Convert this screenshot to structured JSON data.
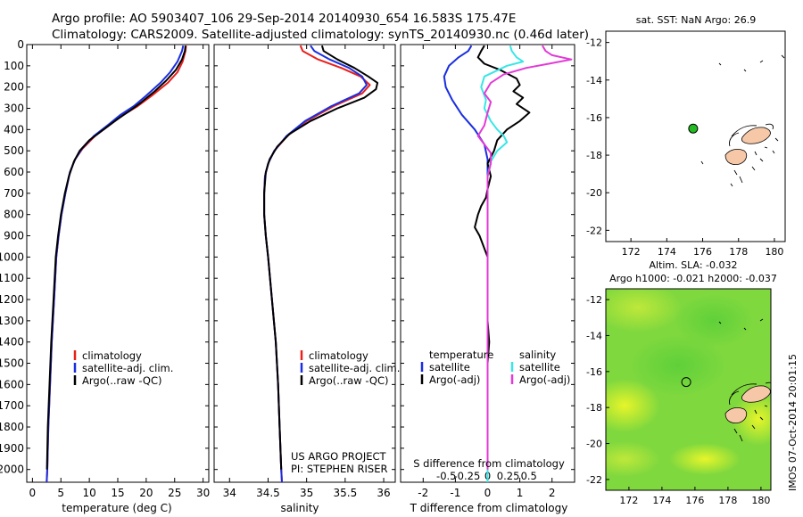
{
  "header": {
    "line1": "Argo profile: AO 5903407_106 29-Sep-2014 20140930_654 16.583S 175.47E",
    "line2": "Climatology: CARS2009. Satellite-adjusted climatology: synTS_20140930.nc (0.46d later)"
  },
  "colors": {
    "climatology": "#e8201c",
    "satellite": "#1a2ee0",
    "argo": "#000000",
    "satellite_s": "#38e6e6",
    "argo_adj": "#e23ad6",
    "land": "#f6c8a8",
    "argo_marker": "#22bb22"
  },
  "chart_data": [
    {
      "type": "line",
      "panel": "temperature",
      "xlabel": "temperature (deg C)",
      "xlim": [
        -1,
        31
      ],
      "ylim": [
        2060,
        0
      ],
      "x_ticks": [
        0,
        5,
        10,
        15,
        20,
        25,
        30
      ],
      "y_ticks": [
        0,
        100,
        200,
        300,
        400,
        500,
        600,
        700,
        800,
        900,
        1000,
        1100,
        1200,
        1300,
        1400,
        1500,
        1600,
        1700,
        1800,
        1900,
        2000
      ],
      "legend": [
        "climatology",
        "satellite-adj. clim.",
        "Argo(..raw -QC)"
      ],
      "series": [
        {
          "name": "climatology",
          "color": "#e8201c",
          "points": [
            [
              27.0,
              5
            ],
            [
              26.9,
              30
            ],
            [
              26.4,
              80
            ],
            [
              25.5,
              130
            ],
            [
              23.8,
              180
            ],
            [
              21.0,
              240
            ],
            [
              18.5,
              290
            ],
            [
              16.0,
              330
            ],
            [
              13.5,
              380
            ],
            [
              11.0,
              430
            ],
            [
              8.8,
              490
            ],
            [
              7.5,
              540
            ],
            [
              6.6,
              600
            ],
            [
              5.8,
              700
            ],
            [
              5.1,
              800
            ],
            [
              4.6,
              900
            ],
            [
              4.2,
              1000
            ],
            [
              3.8,
              1200
            ],
            [
              3.4,
              1400
            ],
            [
              3.1,
              1600
            ],
            [
              2.8,
              1800
            ],
            [
              2.6,
              2000
            ],
            [
              2.5,
              2060
            ]
          ]
        },
        {
          "name": "satellite-adj. clim.",
          "color": "#1a2ee0",
          "points": [
            [
              26.5,
              5
            ],
            [
              26.3,
              30
            ],
            [
              25.5,
              80
            ],
            [
              24.2,
              130
            ],
            [
              22.5,
              180
            ],
            [
              20.0,
              240
            ],
            [
              17.8,
              290
            ],
            [
              15.5,
              330
            ],
            [
              13.2,
              380
            ],
            [
              10.8,
              430
            ],
            [
              8.7,
              490
            ],
            [
              7.5,
              540
            ],
            [
              6.6,
              600
            ],
            [
              5.8,
              700
            ],
            [
              5.1,
              800
            ],
            [
              4.6,
              900
            ],
            [
              4.2,
              1000
            ],
            [
              3.8,
              1200
            ],
            [
              3.4,
              1400
            ],
            [
              3.1,
              1600
            ],
            [
              2.8,
              1800
            ],
            [
              2.6,
              2000
            ],
            [
              2.5,
              2060
            ]
          ]
        },
        {
          "name": "Argo(..raw -QC)",
          "color": "#000000",
          "points": [
            [
              26.9,
              5
            ],
            [
              26.8,
              30
            ],
            [
              26.3,
              70
            ],
            [
              25.2,
              120
            ],
            [
              23.5,
              170
            ],
            [
              21.5,
              220
            ],
            [
              19.2,
              270
            ],
            [
              17.2,
              310
            ],
            [
              15.0,
              350
            ],
            [
              12.5,
              400
            ],
            [
              10.0,
              450
            ],
            [
              8.3,
              500
            ],
            [
              7.3,
              550
            ],
            [
              6.4,
              620
            ],
            [
              5.7,
              700
            ],
            [
              5.0,
              800
            ],
            [
              4.5,
              900
            ],
            [
              4.1,
              1000
            ],
            [
              3.7,
              1200
            ],
            [
              3.3,
              1400
            ],
            [
              3.0,
              1600
            ],
            [
              2.7,
              1800
            ],
            [
              2.55,
              2000
            ]
          ]
        }
      ]
    },
    {
      "type": "line",
      "panel": "salinity",
      "xlabel": "salinity",
      "xlim": [
        33.8,
        36.15
      ],
      "ylim": [
        2060,
        0
      ],
      "x_ticks": [
        34,
        34.5,
        35,
        35.5,
        36
      ],
      "legend": [
        "climatology",
        "satellite-adj. clim.",
        "Argo(..raw -QC)"
      ],
      "annotation": [
        "US ARGO PROJECT",
        "PI: STEPHEN RISER"
      ],
      "series": [
        {
          "name": "climatology",
          "color": "#e8201c",
          "points": [
            [
              34.92,
              5
            ],
            [
              34.95,
              30
            ],
            [
              35.15,
              70
            ],
            [
              35.45,
              110
            ],
            [
              35.7,
              150
            ],
            [
              35.82,
              190
            ],
            [
              35.72,
              230
            ],
            [
              35.35,
              290
            ],
            [
              35.0,
              360
            ],
            [
              34.75,
              430
            ],
            [
              34.58,
              500
            ],
            [
              34.5,
              560
            ],
            [
              34.46,
              620
            ],
            [
              34.45,
              700
            ],
            [
              34.45,
              800
            ],
            [
              34.47,
              900
            ],
            [
              34.5,
              1000
            ],
            [
              34.55,
              1200
            ],
            [
              34.6,
              1400
            ],
            [
              34.63,
              1600
            ],
            [
              34.65,
              1800
            ],
            [
              34.67,
              2000
            ],
            [
              34.68,
              2060
            ]
          ]
        },
        {
          "name": "satellite-adj. clim.",
          "color": "#1a2ee0",
          "points": [
            [
              35.05,
              5
            ],
            [
              35.1,
              30
            ],
            [
              35.3,
              70
            ],
            [
              35.55,
              110
            ],
            [
              35.72,
              150
            ],
            [
              35.78,
              190
            ],
            [
              35.68,
              230
            ],
            [
              35.32,
              290
            ],
            [
              34.98,
              360
            ],
            [
              34.74,
              430
            ],
            [
              34.58,
              500
            ],
            [
              34.5,
              560
            ],
            [
              34.46,
              620
            ],
            [
              34.45,
              700
            ],
            [
              34.45,
              800
            ],
            [
              34.47,
              900
            ],
            [
              34.5,
              1000
            ],
            [
              34.55,
              1200
            ],
            [
              34.6,
              1400
            ],
            [
              34.63,
              1600
            ],
            [
              34.65,
              1800
            ],
            [
              34.67,
              2000
            ],
            [
              34.68,
              2060
            ]
          ]
        },
        {
          "name": "Argo(..raw -QC)",
          "color": "#000000",
          "points": [
            [
              35.2,
              5
            ],
            [
              35.22,
              30
            ],
            [
              35.4,
              70
            ],
            [
              35.62,
              110
            ],
            [
              35.8,
              150
            ],
            [
              35.92,
              180
            ],
            [
              35.9,
              210
            ],
            [
              35.75,
              250
            ],
            [
              35.4,
              300
            ],
            [
              35.05,
              360
            ],
            [
              34.78,
              420
            ],
            [
              34.62,
              480
            ],
            [
              34.52,
              540
            ],
            [
              34.47,
              600
            ],
            [
              34.45,
              700
            ],
            [
              34.45,
              800
            ],
            [
              34.47,
              900
            ],
            [
              34.5,
              1000
            ],
            [
              34.55,
              1200
            ],
            [
              34.6,
              1400
            ],
            [
              34.63,
              1600
            ],
            [
              34.65,
              1800
            ],
            [
              34.67,
              2000
            ]
          ]
        }
      ]
    },
    {
      "type": "line",
      "panel": "difference",
      "xlabel": "T difference from climatology",
      "xlabel_top": "S difference from climatology",
      "xlim": [
        -2.7,
        2.7
      ],
      "ylim": [
        2060,
        0
      ],
      "x_ticks": [
        -2,
        -1,
        0,
        1,
        2
      ],
      "top_ticks": [
        -0.5,
        -0.25,
        0,
        0.25,
        0.5
      ],
      "legend_temperature": {
        "title": "temperature",
        "items": [
          "satellite",
          "Argo(-adj)"
        ]
      },
      "legend_salinity": {
        "title": "salinity",
        "items": [
          "satellite",
          "Argo(-adj)"
        ]
      },
      "series": [
        {
          "name": "temperature satellite",
          "color": "#1a2ee0",
          "points": [
            [
              -0.5,
              5
            ],
            [
              -0.6,
              30
            ],
            [
              -0.9,
              60
            ],
            [
              -1.2,
              100
            ],
            [
              -1.35,
              150
            ],
            [
              -1.3,
              200
            ],
            [
              -1.1,
              260
            ],
            [
              -0.8,
              330
            ],
            [
              -0.4,
              400
            ],
            [
              -0.1,
              470
            ],
            [
              0,
              540
            ],
            [
              0,
              620
            ],
            [
              0,
              800
            ],
            [
              0,
              1000
            ],
            [
              0,
              1400
            ],
            [
              0,
              2060
            ]
          ]
        },
        {
          "name": "temperature Argo(-adj)",
          "color": "#000000",
          "points": [
            [
              -0.1,
              5
            ],
            [
              -0.2,
              30
            ],
            [
              -0.3,
              60
            ],
            [
              -0.1,
              90
            ],
            [
              0.4,
              120
            ],
            [
              0.9,
              160
            ],
            [
              1.0,
              190
            ],
            [
              0.8,
              220
            ],
            [
              1.1,
              250
            ],
            [
              0.9,
              280
            ],
            [
              1.3,
              320
            ],
            [
              1.0,
              360
            ],
            [
              0.6,
              400
            ],
            [
              0.3,
              450
            ],
            [
              0.2,
              500
            ],
            [
              0.0,
              560
            ],
            [
              0.1,
              620
            ],
            [
              0.0,
              680
            ],
            [
              -0.05,
              720
            ],
            [
              -0.2,
              760
            ],
            [
              -0.3,
              800
            ],
            [
              -0.4,
              860
            ],
            [
              -0.25,
              900
            ],
            [
              -0.1,
              960
            ],
            [
              0.0,
              1000
            ],
            [
              0.0,
              1100
            ],
            [
              0.0,
              1300
            ],
            [
              0.05,
              1400
            ],
            [
              0.0,
              1500
            ],
            [
              0.0,
              1600
            ],
            [
              0.0,
              1800
            ],
            [
              0.0,
              2000
            ]
          ]
        },
        {
          "name": "salinity satellite",
          "color": "#38e6e6",
          "points": [
            [
              0.7,
              5
            ],
            [
              0.75,
              30
            ],
            [
              0.9,
              60
            ],
            [
              1.1,
              80
            ],
            [
              0.6,
              100
            ],
            [
              -0.1,
              150
            ],
            [
              -0.2,
              200
            ],
            [
              -0.05,
              260
            ],
            [
              -0.1,
              300
            ],
            [
              0.1,
              360
            ],
            [
              0.3,
              400
            ],
            [
              0.5,
              430
            ],
            [
              0.6,
              460
            ],
            [
              0.3,
              500
            ],
            [
              0.1,
              550
            ],
            [
              0.0,
              620
            ],
            [
              0.0,
              800
            ],
            [
              0.0,
              1000
            ],
            [
              0.0,
              1500
            ],
            [
              0.0,
              2060
            ]
          ]
        },
        {
          "name": "salinity Argo(-adj)",
          "color": "#e23ad6",
          "points": [
            [
              1.7,
              5
            ],
            [
              1.8,
              30
            ],
            [
              2.0,
              50
            ],
            [
              2.6,
              70
            ],
            [
              1.9,
              90
            ],
            [
              1.2,
              110
            ],
            [
              0.5,
              140
            ],
            [
              0.1,
              180
            ],
            [
              -0.1,
              230
            ],
            [
              0.1,
              270
            ],
            [
              0.0,
              320
            ],
            [
              -0.1,
              380
            ],
            [
              -0.3,
              430
            ],
            [
              -0.1,
              470
            ],
            [
              0.1,
              510
            ],
            [
              0.1,
              560
            ],
            [
              0.0,
              620
            ],
            [
              0.0,
              800
            ],
            [
              0.0,
              1000
            ],
            [
              0.0,
              1500
            ],
            [
              0.0,
              2000
            ]
          ]
        }
      ]
    }
  ],
  "maps": {
    "sst": {
      "title": "sat. SST: NaN Argo: 26.9",
      "xlim": [
        170.6,
        180.6
      ],
      "ylim": [
        -22.6,
        -11.4
      ],
      "x_ticks": [
        172,
        174,
        176,
        178,
        180
      ],
      "y_ticks": [
        -12,
        -14,
        -16,
        -18,
        -20,
        -22
      ],
      "argo_position": {
        "lon": 175.47,
        "lat": -16.583
      }
    },
    "sla": {
      "title_line1": "Altim. SLA: -0.032",
      "title_line2": "Argo h1000: -0.021 h2000: -0.037",
      "xlim": [
        170.6,
        180.6
      ],
      "ylim": [
        -22.6,
        -11.4
      ],
      "x_ticks": [
        172,
        174,
        176,
        178,
        180
      ],
      "y_ticks": [
        -12,
        -14,
        -16,
        -18,
        -20,
        -22
      ],
      "argo_position": {
        "lon": 175.47,
        "lat": -16.583
      }
    }
  },
  "footer": {
    "stamp": "IMOS 07-Oct-2014 20:01:15"
  }
}
